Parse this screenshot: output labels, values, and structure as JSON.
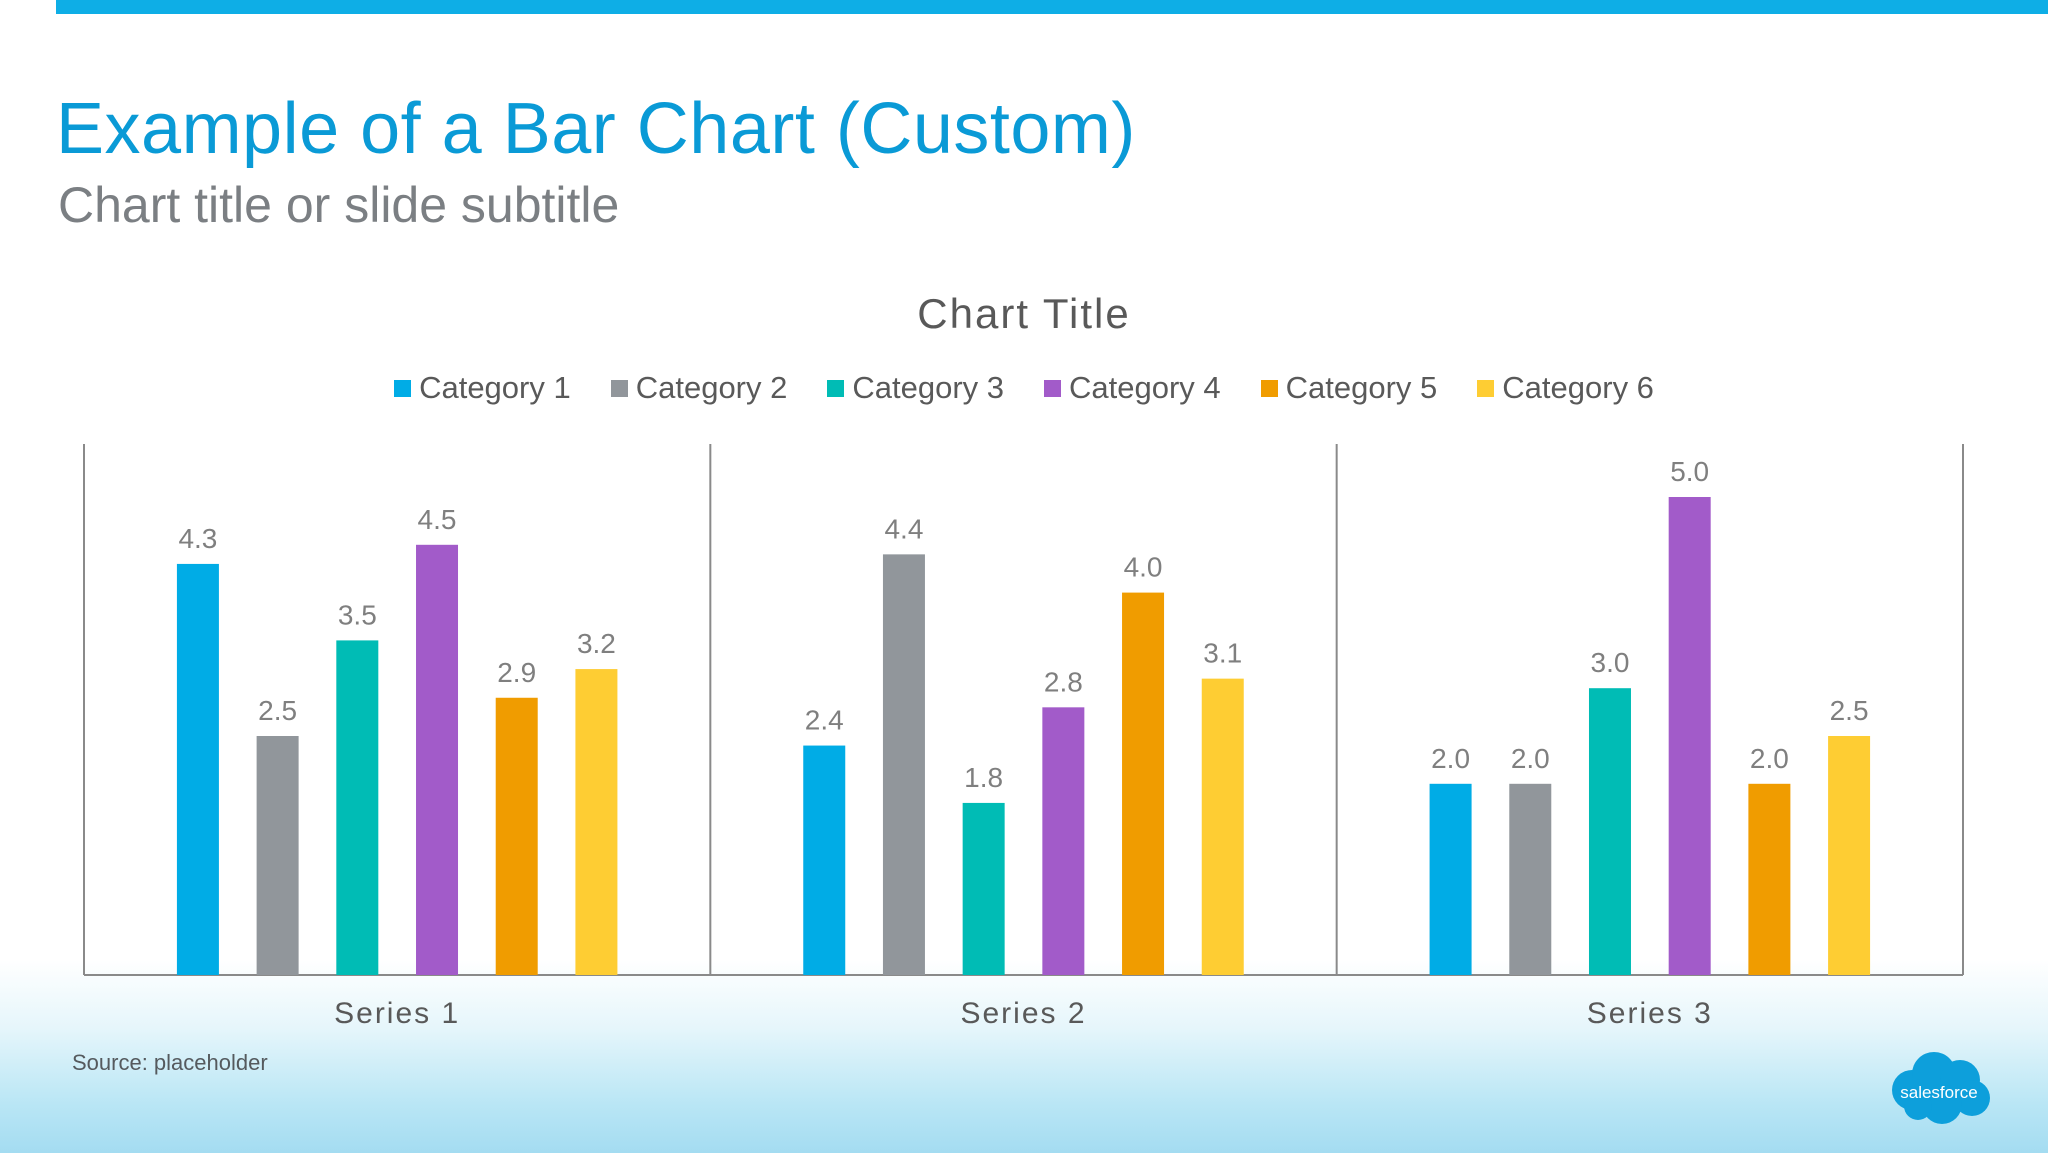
{
  "slide": {
    "title": "Example of a Bar Chart (Custom)",
    "subtitle": "Chart title or slide subtitle",
    "source": "Source: placeholder",
    "logo_text": "salesforce",
    "accent_color": "#0eaee6"
  },
  "chart_data": {
    "type": "bar",
    "title": "Chart Title",
    "categories": [
      "Series 1",
      "Series 2",
      "Series 3"
    ],
    "series": [
      {
        "name": "Category 1",
        "color": "#00ace6",
        "values": [
          4.3,
          2.4,
          2.0
        ]
      },
      {
        "name": "Category 2",
        "color": "#91969b",
        "values": [
          2.5,
          4.4,
          2.0
        ]
      },
      {
        "name": "Category 3",
        "color": "#00bcb5",
        "values": [
          3.5,
          1.8,
          3.0
        ]
      },
      {
        "name": "Category 4",
        "color": "#a25bc9",
        "values": [
          4.5,
          2.8,
          5.0
        ]
      },
      {
        "name": "Category 5",
        "color": "#f09c00",
        "values": [
          2.9,
          4.0,
          2.0
        ]
      },
      {
        "name": "Category 6",
        "color": "#fecd33",
        "values": [
          3.2,
          3.1,
          2.5
        ]
      }
    ],
    "value_format": "0.0",
    "ylim": [
      0,
      6
    ],
    "legend": "top-center",
    "grid": false,
    "group_separators": true
  }
}
